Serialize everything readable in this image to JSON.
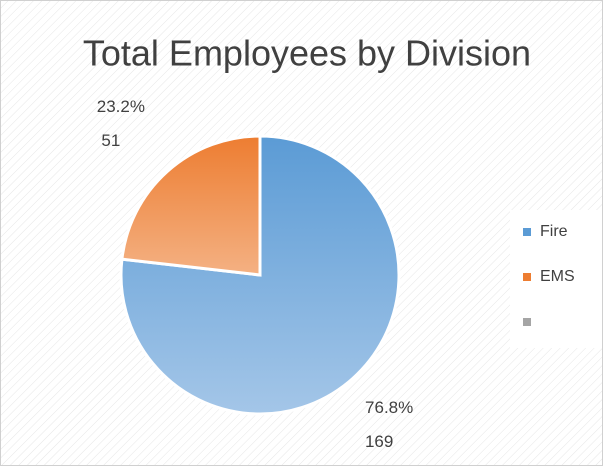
{
  "chart_data": {
    "type": "pie",
    "title": "Total Employees by Division",
    "categories": [
      "Fire",
      "EMS",
      null
    ],
    "values": [
      169,
      51,
      0
    ],
    "percent_labels": [
      "76.8%",
      "23.2%",
      null
    ],
    "colors": [
      "#5b9bd5",
      "#ed7d31",
      "#a5a5a5"
    ],
    "legend": "right"
  }
}
